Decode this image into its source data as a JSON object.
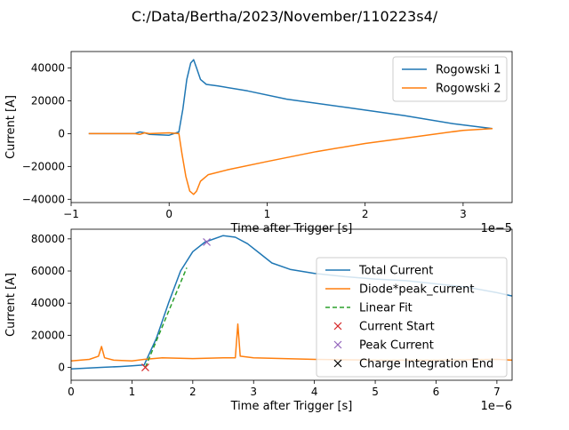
{
  "figure_title": "C:/Data/Bertha/2023/November/110223s4/",
  "colors": {
    "blue": "#1f77b4",
    "orange": "#ff7f0e",
    "green": "#2ca02c",
    "red": "#d62728",
    "purple": "#9467bd",
    "black": "#000000"
  },
  "chart_data": [
    {
      "type": "line",
      "xlabel": "Time after Trigger [s]",
      "ylabel": "Current [A]",
      "x_offset_label": "1e−5",
      "xlim": [
        -1.0,
        3.5
      ],
      "ylim": [
        -42000,
        50000
      ],
      "xticks": [
        -1,
        0,
        1,
        2,
        3
      ],
      "xtick_labels": [
        "−1",
        "0",
        "1",
        "2",
        "3"
      ],
      "yticks": [
        -40000,
        -20000,
        0,
        20000,
        40000
      ],
      "ytick_labels": [
        "−40000",
        "−20000",
        "0",
        "20000",
        "40000"
      ],
      "legend_position": "upper right",
      "series": [
        {
          "name": "Rogowski 1",
          "color": "#1f77b4",
          "x": [
            -0.82,
            -0.35,
            -0.3,
            -0.25,
            -0.2,
            0.0,
            0.1,
            0.14,
            0.18,
            0.22,
            0.25,
            0.28,
            0.32,
            0.38,
            0.5,
            0.8,
            1.2,
            1.8,
            2.4,
            2.9,
            3.3
          ],
          "y": [
            0,
            0,
            1000,
            500,
            -500,
            -1000,
            1000,
            15000,
            33000,
            43000,
            45000,
            40000,
            33000,
            30000,
            29000,
            26000,
            21000,
            16000,
            11000,
            6000,
            3000
          ]
        },
        {
          "name": "Rogowski 2",
          "color": "#ff7f0e",
          "x": [
            -0.82,
            -0.35,
            -0.3,
            -0.25,
            -0.2,
            0.0,
            0.1,
            0.13,
            0.17,
            0.21,
            0.25,
            0.28,
            0.32,
            0.4,
            0.6,
            1.0,
            1.5,
            2.0,
            2.5,
            3.0,
            3.3
          ],
          "y": [
            0,
            0,
            -500,
            500,
            0,
            500,
            0,
            -12000,
            -26000,
            -35000,
            -37000,
            -35000,
            -29000,
            -25000,
            -22000,
            -17000,
            -11000,
            -6000,
            -2000,
            2000,
            3000
          ]
        }
      ]
    },
    {
      "type": "line",
      "xlabel": "Time after Trigger [s]",
      "ylabel": "Current [A]",
      "x_offset_label": "1e−6",
      "xlim": [
        0,
        7.25
      ],
      "ylim": [
        -8000,
        86000
      ],
      "xticks": [
        0,
        1,
        2,
        3,
        4,
        5,
        6,
        7
      ],
      "xtick_labels": [
        "0",
        "1",
        "2",
        "3",
        "4",
        "5",
        "6",
        "7"
      ],
      "yticks": [
        0,
        20000,
        40000,
        60000,
        80000
      ],
      "ytick_labels": [
        "0",
        "20000",
        "40000",
        "60000",
        "80000"
      ],
      "legend_position": "center right",
      "series": [
        {
          "name": "Total Current",
          "color": "#1f77b4",
          "style": "solid",
          "x": [
            0.0,
            0.5,
            0.8,
            1.0,
            1.2,
            1.4,
            1.6,
            1.8,
            2.0,
            2.2,
            2.5,
            2.7,
            2.9,
            3.1,
            3.3,
            3.6,
            4.0,
            4.5,
            5.0,
            5.5,
            6.0,
            6.5,
            7.0,
            7.25
          ],
          "y": [
            -1000,
            0,
            500,
            1000,
            1500,
            18000,
            40000,
            60000,
            72000,
            78000,
            82000,
            81000,
            77000,
            71000,
            65000,
            61000,
            58500,
            56500,
            55000,
            54000,
            52000,
            50000,
            46500,
            44500
          ]
        },
        {
          "name": "Diode*peak_current",
          "color": "#ff7f0e",
          "style": "solid",
          "x": [
            0.0,
            0.3,
            0.45,
            0.5,
            0.55,
            0.7,
            1.0,
            1.2,
            1.5,
            2.0,
            2.5,
            2.7,
            2.74,
            2.78,
            3.0,
            3.5,
            4.0,
            5.0,
            6.0,
            7.0,
            7.25
          ],
          "y": [
            4000,
            5000,
            7000,
            13000,
            6000,
            4500,
            4000,
            5000,
            6000,
            5500,
            6000,
            6000,
            27000,
            7000,
            6000,
            5500,
            5000,
            4500,
            4500,
            5000,
            4500
          ]
        },
        {
          "name": "Linear Fit",
          "color": "#2ca02c",
          "style": "dashed",
          "x": [
            1.22,
            1.9
          ],
          "y": [
            0,
            62000
          ]
        },
        {
          "name": "Current Start",
          "color": "#d62728",
          "style": "marker-x",
          "x": [
            1.22
          ],
          "y": [
            0
          ]
        },
        {
          "name": "Peak Current",
          "color": "#9467bd",
          "style": "marker-x",
          "x": [
            2.23
          ],
          "y": [
            78000
          ]
        },
        {
          "name": "Charge Integration End",
          "color": "#000000",
          "style": "marker-x",
          "x": [],
          "y": []
        }
      ]
    }
  ]
}
